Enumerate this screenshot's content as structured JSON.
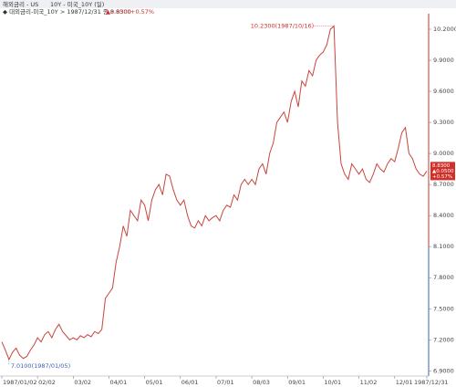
{
  "header": {
    "title": "해외금리 - US",
    "symbol": "10Y - 미국_10Y (일)",
    "series_label": "◆ 대외금리-미국_10Y > 1987/12/31 종 8.8300",
    "change": "▲0.0500",
    "pct": "+0.57%",
    "close": "8.8300"
  },
  "chart_data": {
    "type": "line",
    "categories": [
      "1987/01/02",
      null,
      null,
      null,
      null,
      null,
      null,
      null,
      null,
      null,
      "02/02",
      null,
      null,
      null,
      null,
      null,
      null,
      null,
      null,
      null,
      "03/02",
      null,
      null,
      null,
      null,
      null,
      null,
      null,
      null,
      null,
      "04/01",
      null,
      null,
      null,
      null,
      null,
      null,
      null,
      null,
      null,
      "05/01",
      null,
      null,
      null,
      null,
      null,
      null,
      null,
      null,
      null,
      "06/01",
      null,
      null,
      null,
      null,
      null,
      null,
      null,
      null,
      null,
      "07/01",
      null,
      null,
      null,
      null,
      null,
      null,
      null,
      null,
      null,
      "08/03",
      null,
      null,
      null,
      null,
      null,
      null,
      null,
      null,
      null,
      "09/01",
      null,
      null,
      null,
      null,
      null,
      null,
      null,
      null,
      null,
      "10/01",
      null,
      null,
      null,
      null,
      null,
      null,
      null,
      null,
      null,
      "11/02",
      null,
      null,
      null,
      null,
      null,
      null,
      null,
      null,
      null,
      "12/01",
      null,
      null,
      null,
      null,
      null,
      null,
      null,
      null,
      "1987/12/31"
    ],
    "series": [
      {
        "name": "미국_10Y",
        "color": "#c8453c",
        "values": [
          7.18,
          7.1,
          7.01,
          7.08,
          7.12,
          7.05,
          7.02,
          7.04,
          7.1,
          7.15,
          7.22,
          7.18,
          7.25,
          7.28,
          7.22,
          7.3,
          7.35,
          7.28,
          7.24,
          7.2,
          7.22,
          7.2,
          7.24,
          7.22,
          7.25,
          7.23,
          7.28,
          7.26,
          7.3,
          7.6,
          7.65,
          7.7,
          7.95,
          8.1,
          8.3,
          8.2,
          8.45,
          8.4,
          8.35,
          8.55,
          8.5,
          8.35,
          8.55,
          8.65,
          8.7,
          8.6,
          8.8,
          8.78,
          8.65,
          8.55,
          8.5,
          8.55,
          8.4,
          8.3,
          8.28,
          8.35,
          8.3,
          8.4,
          8.35,
          8.38,
          8.4,
          8.35,
          8.45,
          8.5,
          8.48,
          8.6,
          8.55,
          8.7,
          8.75,
          8.7,
          8.75,
          8.7,
          8.85,
          8.9,
          8.8,
          9.0,
          9.1,
          9.3,
          9.35,
          9.4,
          9.3,
          9.5,
          9.6,
          9.45,
          9.7,
          9.65,
          9.8,
          9.75,
          9.9,
          9.95,
          9.98,
          10.05,
          10.2,
          10.23,
          9.3,
          8.9,
          8.8,
          8.75,
          8.9,
          8.85,
          8.8,
          8.85,
          8.75,
          8.72,
          8.8,
          8.9,
          8.85,
          8.82,
          8.9,
          8.95,
          8.92,
          9.05,
          9.2,
          9.25,
          9.0,
          8.95,
          8.85,
          8.8,
          8.78,
          8.83
        ]
      }
    ],
    "ylim": [
      6.85,
      10.35
    ],
    "yticks": [
      {
        "value": 10.2,
        "label": "10.2000"
      },
      {
        "value": 9.9,
        "label": "9.9000"
      },
      {
        "value": 9.6,
        "label": "9.6000"
      },
      {
        "value": 9.3,
        "label": "9.3000"
      },
      {
        "value": 9.0,
        "label": "9.0000"
      },
      {
        "value": 8.7,
        "label": "8.7000"
      },
      {
        "value": 8.4,
        "label": "8.4000"
      },
      {
        "value": 8.1,
        "label": "8.1000"
      },
      {
        "value": 7.8,
        "label": "7.8000"
      },
      {
        "value": 7.5,
        "label": "7.5000"
      },
      {
        "value": 7.2,
        "label": "7.2000"
      },
      {
        "value": 6.9,
        "label": "6.9000"
      }
    ],
    "annotations": [
      {
        "text": "10.2300(1987/10/16)",
        "index": 93
      },
      {
        "text": "7.0100(1987/01/05)",
        "index": 2
      }
    ]
  }
}
